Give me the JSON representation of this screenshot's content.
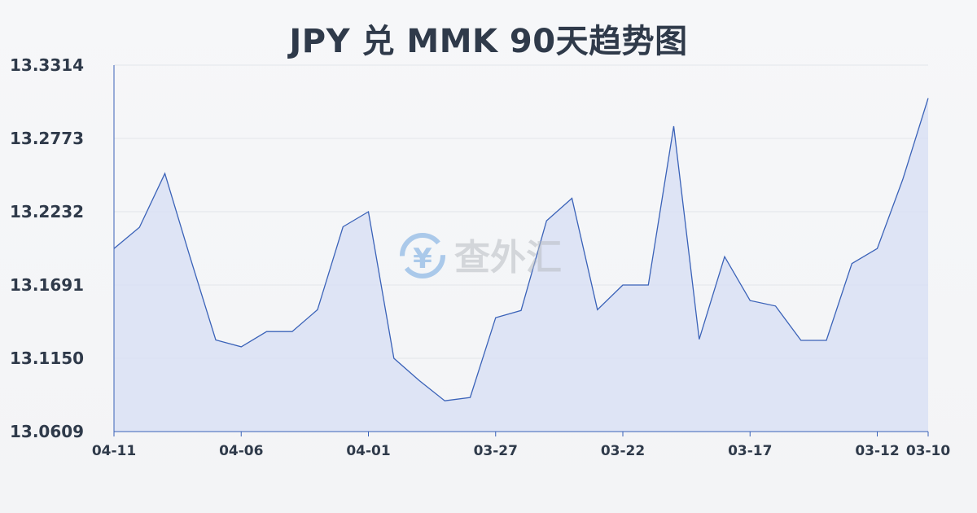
{
  "chart_data": {
    "type": "area",
    "title": "JPY 兑 MMK 90天趋势图",
    "xlabel": "",
    "ylabel": "",
    "ylim": [
      13.0609,
      13.3314
    ],
    "yticks": [
      "13.3314",
      "13.2773",
      "13.2232",
      "13.1691",
      "13.1150",
      "13.0609"
    ],
    "xtick_labels": [
      "04-11",
      "04-06",
      "04-01",
      "03-27",
      "03-22",
      "03-17",
      "03-12",
      "03-10"
    ],
    "grid": true,
    "legend": "none",
    "colors": {
      "line": "#3a62b8",
      "fill": "#d9e1f5",
      "grid": "#e2e5ea",
      "axis": "#3a62b8"
    },
    "x": [
      "04-11",
      "04-10",
      "04-09",
      "04-08",
      "04-07",
      "04-06",
      "04-05",
      "04-04",
      "04-03",
      "04-02",
      "04-01",
      "03-31",
      "03-30",
      "03-29",
      "03-28",
      "03-27",
      "03-26",
      "03-25",
      "03-24",
      "03-23",
      "03-22",
      "03-21",
      "03-20",
      "03-19",
      "03-18",
      "03-17",
      "03-16",
      "03-15",
      "03-14",
      "03-13",
      "03-12",
      "03-11",
      "03-10"
    ],
    "values": [
      13.196,
      13.2117,
      13.2514,
      13.189,
      13.1285,
      13.1235,
      13.1347,
      13.1347,
      13.1509,
      13.2121,
      13.2232,
      13.115,
      13.0985,
      13.0836,
      13.0861,
      13.145,
      13.1503,
      13.2165,
      13.2331,
      13.1509,
      13.1691,
      13.1691,
      13.2863,
      13.129,
      13.19,
      13.1576,
      13.1536,
      13.1282,
      13.1282,
      13.1849,
      13.196,
      13.247,
      13.307
    ]
  },
  "watermark": {
    "text": "查外汇",
    "icon": "yen-exchange-icon"
  }
}
